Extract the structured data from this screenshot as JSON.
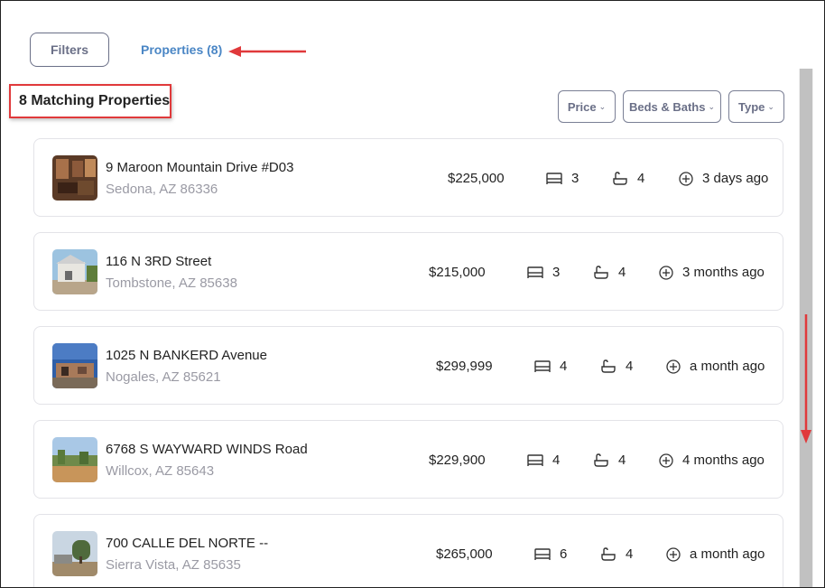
{
  "tabs": {
    "filters_label": "Filters",
    "properties_label": "Properties (8)"
  },
  "heading": "8 Matching Properties",
  "filter_buttons": {
    "price": "Price",
    "beds_baths": "Beds & Baths",
    "type": "Type"
  },
  "annotation_color": "#e0393b",
  "properties": [
    {
      "address": "9 Maroon Mountain Drive #D03",
      "city": "Sedona, AZ 86336",
      "price": "$225,000",
      "beds": "3",
      "baths": "4",
      "listed": "3 days ago",
      "thumb": "interior"
    },
    {
      "address": "116 N 3RD Street",
      "city": "Tombstone, AZ 85638",
      "price": "$215,000",
      "beds": "3",
      "baths": "4",
      "listed": "3 months ago",
      "thumb": "house"
    },
    {
      "address": "1025 N BANKERD Avenue",
      "city": "Nogales, AZ 85621",
      "price": "$299,999",
      "beds": "4",
      "baths": "4",
      "listed": "a month ago",
      "thumb": "sky-house"
    },
    {
      "address": "6768 S WAYWARD WINDS Road",
      "city": "Willcox, AZ 85643",
      "price": "$229,900",
      "beds": "4",
      "baths": "4",
      "listed": "4 months ago",
      "thumb": "desert"
    },
    {
      "address": "700 CALLE DEL NORTE --",
      "city": "Sierra Vista, AZ 85635",
      "price": "$265,000",
      "beds": "6",
      "baths": "4",
      "listed": "a month ago",
      "thumb": "tree"
    }
  ]
}
